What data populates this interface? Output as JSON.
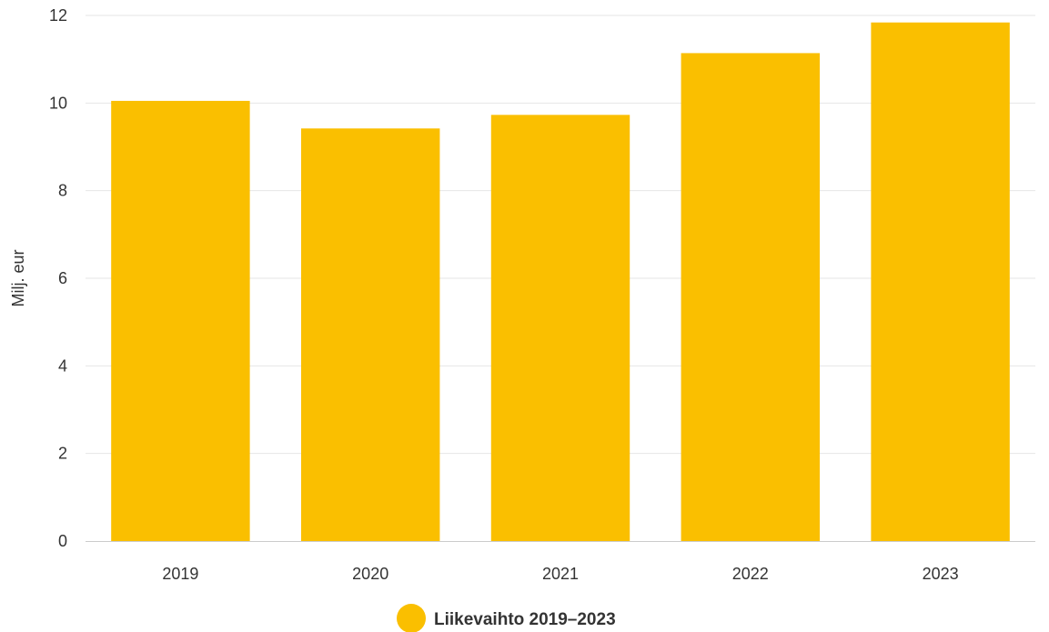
{
  "chart_data": {
    "type": "bar",
    "categories": [
      "2019",
      "2020",
      "2021",
      "2022",
      "2023"
    ],
    "series": [
      {
        "name": "Liikevaihto 2019–2023",
        "values": [
          10.05,
          9.42,
          9.73,
          11.14,
          11.84
        ],
        "color": "#fabf00"
      }
    ],
    "ylabel": "Milj. eur",
    "xlabel": "",
    "ylim": [
      0,
      12
    ],
    "yticks": [
      "0",
      "2",
      "4",
      "6",
      "8",
      "10",
      "12"
    ],
    "grid": true,
    "legend_position": "bottom-center"
  }
}
